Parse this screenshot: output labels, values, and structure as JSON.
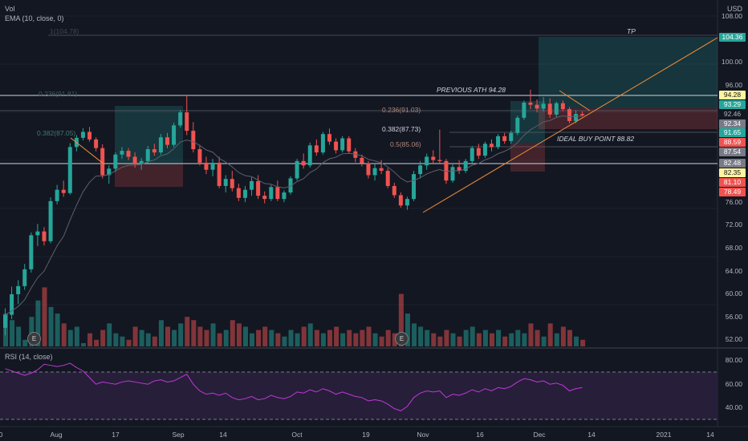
{
  "header": {
    "vol_label": "Vol",
    "ema_label": "EMA (10, close, 0)",
    "currency": "USD"
  },
  "rsi": {
    "label": "RSI (14, close)",
    "levels": [
      "80.00",
      "60.00",
      "40.00"
    ]
  },
  "price_axis": [
    "108.00",
    "100.00",
    "96.00",
    "76.00",
    "72.00",
    "68.00",
    "64.00",
    "60.00",
    "56.00",
    "52.00"
  ],
  "price_labels": [
    {
      "text": "104.36",
      "bg": "#26a69a",
      "fg": "#ffffff"
    },
    {
      "text": "94.28",
      "bg": "#fff59d",
      "fg": "#131722"
    },
    {
      "text": "93.29",
      "bg": "#26a69a",
      "fg": "#ffffff"
    },
    {
      "text": "92.46",
      "bg": "#131722",
      "fg": "#b2b5be"
    },
    {
      "text": "92.34",
      "bg": "#787b86",
      "fg": "#ffffff"
    },
    {
      "text": "91.65",
      "bg": "#26a69a",
      "fg": "#ffffff"
    },
    {
      "text": "88.59",
      "bg": "#ef5350",
      "fg": "#ffffff"
    },
    {
      "text": "87.54",
      "bg": "#787b86",
      "fg": "#ffffff"
    },
    {
      "text": "82.48",
      "bg": "#787b86",
      "fg": "#ffffff"
    },
    {
      "text": "82.35",
      "bg": "#fff59d",
      "fg": "#131722"
    },
    {
      "text": "81.10",
      "bg": "#ef5350",
      "fg": "#ffffff"
    },
    {
      "text": "78.49",
      "bg": "#ef5350",
      "fg": "#ffffff"
    }
  ],
  "time_axis": [
    "0",
    "Aug",
    "17",
    "Sep",
    "14",
    "Oct",
    "19",
    "Nov",
    "16",
    "Dec",
    "14",
    "2021",
    "14"
  ],
  "annotations": {
    "tp": "TP",
    "previous_ath": "PREVIOUS ATH 94.28",
    "ideal_buy": "IDEAL BUY POINT 88.82"
  },
  "fib_labels": {
    "f1_top": "1(104.78)",
    "f236": "0.236(91.03)",
    "f382": "0.382(87.73)",
    "f5": "0.5(85.06)",
    "left_1": "0.236(91.81)",
    "left_382": "0.382(87.05)"
  },
  "earnings": [
    "E",
    "E"
  ],
  "colors": {
    "up": "#26a69a",
    "down": "#ef5350",
    "rsi": "#c039d8",
    "trend": "#f28c3a",
    "background": "#131722"
  },
  "chart_data": {
    "type": "candlestick",
    "candles": [
      [
        52.4,
        56.0,
        51.0,
        54.8
      ],
      [
        54.8,
        60.0,
        54.0,
        58.6
      ],
      [
        58.6,
        61.2,
        56.8,
        60.1
      ],
      [
        60.1,
        64.2,
        59.4,
        63.2
      ],
      [
        63.2,
        70.0,
        62.6,
        69.5
      ],
      [
        69.5,
        71.6,
        67.5,
        70.2
      ],
      [
        70.2,
        71.0,
        67.6,
        68.4
      ],
      [
        68.4,
        76.5,
        68.0,
        75.8
      ],
      [
        75.8,
        78.8,
        75.2,
        77.9
      ],
      [
        77.9,
        79.6,
        76.6,
        77.3
      ],
      [
        77.3,
        86.5,
        77.0,
        85.8
      ],
      [
        85.8,
        88.0,
        85.0,
        87.5
      ],
      [
        87.5,
        89.3,
        87.0,
        88.6
      ],
      [
        88.6,
        89.5,
        86.8,
        87.2
      ],
      [
        87.2,
        87.6,
        85.0,
        85.6
      ],
      [
        85.6,
        86.3,
        80.0,
        80.6
      ],
      [
        80.6,
        82.4,
        79.0,
        81.8
      ],
      [
        81.8,
        84.8,
        81.2,
        84.4
      ],
      [
        84.4,
        85.8,
        83.6,
        85.1
      ],
      [
        85.1,
        85.6,
        83.4,
        84.0
      ],
      [
        84.0,
        84.8,
        82.0,
        82.6
      ],
      [
        82.6,
        83.8,
        81.6,
        83.2
      ],
      [
        83.2,
        86.0,
        82.8,
        85.4
      ],
      [
        85.4,
        86.4,
        84.2,
        84.8
      ],
      [
        84.8,
        88.2,
        84.4,
        87.6
      ],
      [
        87.6,
        88.4,
        85.6,
        86.2
      ],
      [
        86.2,
        90.3,
        85.8,
        89.8
      ],
      [
        89.8,
        92.6,
        89.4,
        92.2
      ],
      [
        92.2,
        95.2,
        88.0,
        88.8
      ],
      [
        88.8,
        90.4,
        84.8,
        85.4
      ],
      [
        85.4,
        86.2,
        82.4,
        82.9
      ],
      [
        82.9,
        84.0,
        80.8,
        81.6
      ],
      [
        81.6,
        83.6,
        80.4,
        82.9
      ],
      [
        82.9,
        84.0,
        78.2,
        78.6
      ],
      [
        78.6,
        80.6,
        77.4,
        79.9
      ],
      [
        79.9,
        81.4,
        77.6,
        78.2
      ],
      [
        78.2,
        79.0,
        75.8,
        76.4
      ],
      [
        76.4,
        78.6,
        75.6,
        77.9
      ],
      [
        77.9,
        80.2,
        76.8,
        79.5
      ],
      [
        79.5,
        80.6,
        76.2,
        76.8
      ],
      [
        76.8,
        77.6,
        75.4,
        76.2
      ],
      [
        76.2,
        78.8,
        75.8,
        78.4
      ],
      [
        78.4,
        79.6,
        75.8,
        76.2
      ],
      [
        76.2,
        77.8,
        75.6,
        77.4
      ],
      [
        77.4,
        80.4,
        77.0,
        80.0
      ],
      [
        80.0,
        83.6,
        79.6,
        83.2
      ],
      [
        83.2,
        84.6,
        81.8,
        82.4
      ],
      [
        82.4,
        86.6,
        82.0,
        86.1
      ],
      [
        86.1,
        87.2,
        84.2,
        84.8
      ],
      [
        84.8,
        88.6,
        84.4,
        88.2
      ],
      [
        88.2,
        89.2,
        86.2,
        86.8
      ],
      [
        86.8,
        87.4,
        84.6,
        85.2
      ],
      [
        85.2,
        87.8,
        84.8,
        87.4
      ],
      [
        87.4,
        87.8,
        84.6,
        85.0
      ],
      [
        85.0,
        85.6,
        83.0,
        83.8
      ],
      [
        83.8,
        84.4,
        82.2,
        82.8
      ],
      [
        82.8,
        83.2,
        80.0,
        80.6
      ],
      [
        80.6,
        82.6,
        79.6,
        81.9
      ],
      [
        81.9,
        83.4,
        80.8,
        81.4
      ],
      [
        81.4,
        81.9,
        78.2,
        78.6
      ],
      [
        78.6,
        79.2,
        76.4,
        76.9
      ],
      [
        76.9,
        77.4,
        74.6,
        75.0
      ],
      [
        75.0,
        76.6,
        74.2,
        76.2
      ],
      [
        76.2,
        81.4,
        75.8,
        80.8
      ],
      [
        80.8,
        83.2,
        80.0,
        82.4
      ],
      [
        82.4,
        84.6,
        81.6,
        84.0
      ],
      [
        84.0,
        85.2,
        82.6,
        83.4
      ],
      [
        83.4,
        89.0,
        82.6,
        83.2
      ],
      [
        83.2,
        83.6,
        79.0,
        79.6
      ],
      [
        79.6,
        82.6,
        79.2,
        82.1
      ],
      [
        82.1,
        83.4,
        80.8,
        81.4
      ],
      [
        81.4,
        83.6,
        81.0,
        83.2
      ],
      [
        83.2,
        86.0,
        82.8,
        85.6
      ],
      [
        85.6,
        86.4,
        83.6,
        84.2
      ],
      [
        84.2,
        86.8,
        83.8,
        86.4
      ],
      [
        86.4,
        87.2,
        85.0,
        85.8
      ],
      [
        85.8,
        88.2,
        85.4,
        87.8
      ],
      [
        87.8,
        88.4,
        86.4,
        86.9
      ],
      [
        86.9,
        88.8,
        86.4,
        88.4
      ],
      [
        88.4,
        91.6,
        88.0,
        91.2
      ],
      [
        91.2,
        94.4,
        90.8,
        94.0
      ],
      [
        94.0,
        96.4,
        92.8,
        93.6
      ],
      [
        93.6,
        94.6,
        92.2,
        92.9
      ],
      [
        92.9,
        95.0,
        92.4,
        93.8
      ],
      [
        93.8,
        94.8,
        91.2,
        91.8
      ],
      [
        91.8,
        94.2,
        91.4,
        93.9
      ],
      [
        93.9,
        94.4,
        92.4,
        92.8
      ],
      [
        92.8,
        93.2,
        90.2,
        90.6
      ],
      [
        90.6,
        92.6,
        90.2,
        91.9
      ],
      [
        91.9,
        92.4,
        91.4,
        91.65
      ]
    ],
    "volume": [
      58,
      56,
      54,
      50,
      57,
      62,
      66,
      60,
      58,
      55,
      53,
      54,
      49,
      52,
      50,
      53,
      55,
      52,
      51,
      50,
      54,
      53,
      52,
      51,
      56,
      54,
      53,
      55,
      57,
      56,
      54,
      53,
      55,
      52,
      53,
      56,
      55,
      54,
      52,
      53,
      54,
      53,
      52,
      51,
      53,
      52,
      54,
      55,
      53,
      52,
      53,
      54,
      52,
      53,
      52,
      53,
      54,
      52,
      51,
      53,
      52,
      64,
      58,
      55,
      54,
      53,
      52,
      51,
      53,
      52,
      51,
      53,
      54,
      52,
      53,
      52,
      53,
      51,
      52,
      53,
      52,
      55,
      53,
      51,
      55,
      52,
      54,
      53,
      51,
      50
    ],
    "rsi": [
      78,
      76,
      74,
      72,
      74,
      77,
      82,
      81,
      80,
      81,
      83,
      79,
      76,
      70,
      64,
      66,
      65,
      64,
      66,
      67,
      66,
      65,
      64,
      67,
      68,
      66,
      67,
      70,
      73,
      64,
      58,
      55,
      56,
      54,
      56,
      52,
      50,
      51,
      53,
      50,
      51,
      54,
      52,
      51,
      53,
      57,
      56,
      59,
      57,
      60,
      58,
      55,
      57,
      55,
      53,
      52,
      49,
      50,
      49,
      46,
      42,
      40,
      44,
      52,
      56,
      58,
      57,
      58,
      52,
      55,
      54,
      56,
      59,
      57,
      60,
      58,
      61,
      60,
      62,
      66,
      69,
      68,
      66,
      67,
      64,
      65,
      63,
      58,
      60,
      61
    ],
    "price_range": [
      50,
      110
    ],
    "rsi_range": [
      28,
      88
    ]
  }
}
